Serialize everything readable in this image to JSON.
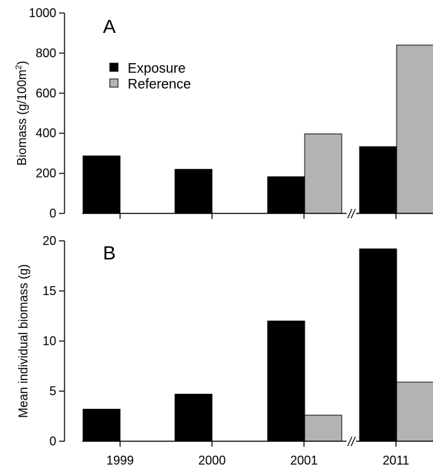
{
  "chart_data": [
    {
      "type": "bar",
      "panel": "A",
      "categories": [
        "1999",
        "2000",
        "2001",
        "2011"
      ],
      "series": [
        {
          "name": "Exposure",
          "values": [
            287,
            220,
            183,
            333
          ],
          "color": "#000000"
        },
        {
          "name": "Reference",
          "values": [
            0,
            0,
            397,
            840
          ],
          "color": "#b3b3b3"
        }
      ],
      "ylabel": "Biomass (g/100m²)",
      "ylabel_main": "Biomass (g/100m",
      "ylabel_sup": "2",
      "ylabel_end": ")",
      "ylim": [
        0,
        1000
      ],
      "yticks": [
        0,
        200,
        400,
        600,
        800,
        1000
      ],
      "legend": "upper-left",
      "axis_break": "//"
    },
    {
      "type": "bar",
      "panel": "B",
      "categories": [
        "1999",
        "2000",
        "2001",
        "2011"
      ],
      "series": [
        {
          "name": "Exposure",
          "values": [
            3.2,
            4.7,
            12.0,
            19.2
          ],
          "color": "#000000"
        },
        {
          "name": "Reference",
          "values": [
            0,
            0,
            2.6,
            5.9
          ],
          "color": "#b3b3b3"
        }
      ],
      "ylabel": "Mean individual biomass (g)",
      "ylim": [
        0,
        20
      ],
      "yticks": [
        0,
        5,
        10,
        15,
        20
      ],
      "axis_break": "//"
    }
  ]
}
